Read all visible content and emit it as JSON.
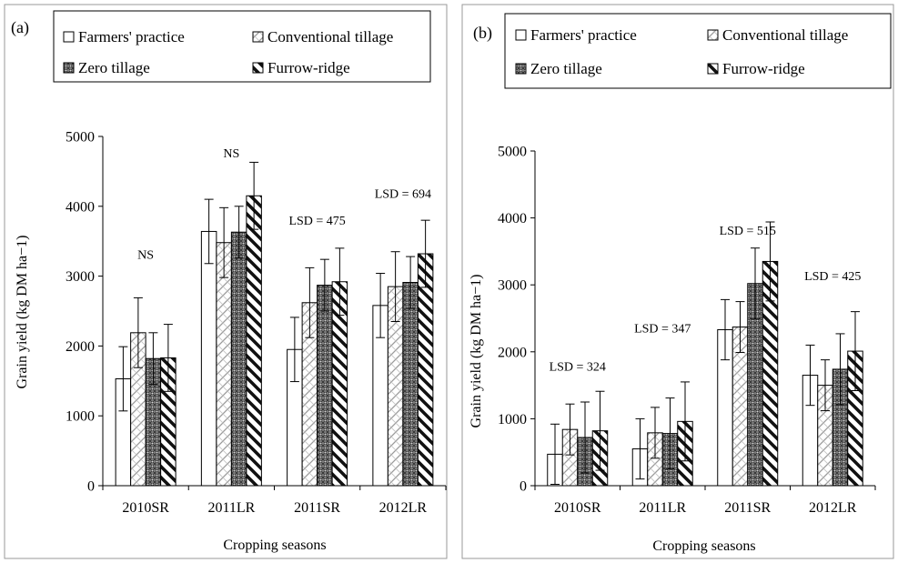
{
  "chart_data": [
    {
      "type": "bar",
      "panel_label": "(a)",
      "xlabel": "Cropping seasons",
      "ylabel": "Grain yield (kg DM ha−1)",
      "ylim": [
        0,
        5000
      ],
      "yticks": [
        0,
        1000,
        2000,
        3000,
        4000,
        5000
      ],
      "categories": [
        "2010SR",
        "2011LR",
        "2011SR",
        "2012LR"
      ],
      "legend_position": "top",
      "series": [
        {
          "name": "Farmers' practice",
          "pattern": "blank",
          "values": [
            1530,
            3640,
            1950,
            2580
          ],
          "errors": [
            460,
            460,
            460,
            460
          ]
        },
        {
          "name": "Conventional tillage",
          "pattern": "crosshatch",
          "values": [
            2190,
            3480,
            2620,
            2850
          ],
          "errors": [
            500,
            500,
            500,
            500
          ]
        },
        {
          "name": "Zero tillage",
          "pattern": "dense-grid",
          "values": [
            1820,
            3630,
            2870,
            2910
          ],
          "errors": [
            370,
            370,
            370,
            370
          ]
        },
        {
          "name": "Furrow-ridge",
          "pattern": "heavy-diagonal",
          "values": [
            1830,
            4150,
            2920,
            3320
          ],
          "errors": [
            480,
            480,
            480,
            480
          ]
        }
      ],
      "annotations": [
        {
          "category_index": 0,
          "text": "NS",
          "y": 3250
        },
        {
          "category_index": 1,
          "text": "NS",
          "y": 4700
        },
        {
          "category_index": 2,
          "text": "LSD = 475",
          "y": 3740
        },
        {
          "category_index": 3,
          "text": "LSD = 694",
          "y": 4120
        }
      ]
    },
    {
      "type": "bar",
      "panel_label": "(b)",
      "xlabel": "Cropping seasons",
      "ylabel": "Grain  yield (kg DM ha−1)",
      "ylim": [
        0,
        5000
      ],
      "yticks": [
        0,
        1000,
        2000,
        3000,
        4000,
        5000
      ],
      "categories": [
        "2010SR",
        "2011LR",
        "2011SR",
        "2012LR"
      ],
      "legend_position": "top",
      "series": [
        {
          "name": "Farmers' practice",
          "pattern": "blank",
          "values": [
            470,
            550,
            2330,
            1650
          ],
          "errors": [
            450,
            450,
            450,
            450
          ]
        },
        {
          "name": "Conventional tillage",
          "pattern": "crosshatch",
          "values": [
            840,
            790,
            2370,
            1500
          ],
          "errors": [
            380,
            380,
            380,
            380
          ]
        },
        {
          "name": "Zero tillage",
          "pattern": "dense-grid",
          "values": [
            720,
            780,
            3020,
            1740
          ],
          "errors": [
            530,
            530,
            530,
            530
          ]
        },
        {
          "name": "Furrow-ridge",
          "pattern": "heavy-diagonal",
          "values": [
            820,
            960,
            3350,
            2010
          ],
          "errors": [
            590,
            590,
            590,
            590
          ]
        }
      ],
      "annotations": [
        {
          "category_index": 0,
          "text": "LSD = 324",
          "y": 1720
        },
        {
          "category_index": 1,
          "text": "LSD = 347",
          "y": 2290
        },
        {
          "category_index": 2,
          "text": "LSD = 515",
          "y": 3750
        },
        {
          "category_index": 3,
          "text": "LSD = 425",
          "y": 3070
        }
      ]
    }
  ]
}
